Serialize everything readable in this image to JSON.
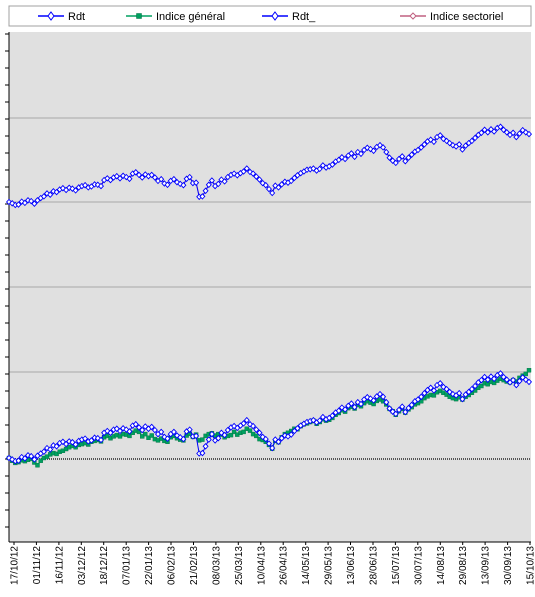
{
  "chart_data": {
    "type": "line",
    "title": "",
    "xlabel": "",
    "ylabel": "",
    "grid": true,
    "legend": "top",
    "x_tick_labels": [
      "17/10/12",
      "01/11/12",
      "16/11/12",
      "03/12/12",
      "18/12/12",
      "07/01/13",
      "22/01/13",
      "06/02/13",
      "21/02/13",
      "08/03/13",
      "25/03/13",
      "10/04/13",
      "26/04/13",
      "14/05/13",
      "29/05/13",
      "13/06/13",
      "28/06/13",
      "15/07/13",
      "30/07/13",
      "14/08/13",
      "29/08/13",
      "13/09/13",
      "30/09/13",
      "15/10/13"
    ],
    "series": [
      {
        "name": "Rdt",
        "color": "#0000ff",
        "marker": "diamond",
        "values": [
          0.0,
          -0.3,
          -0.7,
          -0.6,
          0.2,
          -0.1,
          0.6,
          0.4,
          -0.3,
          0.5,
          1.0,
          1.4,
          2.2,
          1.9,
          2.8,
          2.6,
          3.3,
          3.6,
          3.1,
          3.7,
          3.5,
          3.0,
          3.8,
          4.1,
          4.3,
          3.7,
          3.9,
          4.5,
          4.4,
          4.0,
          5.6,
          6.0,
          5.6,
          6.3,
          6.5,
          6.0,
          6.6,
          6.3,
          5.9,
          7.2,
          7.5,
          6.8,
          6.2,
          7.0,
          6.5,
          6.9,
          6.2,
          5.3,
          5.8,
          4.7,
          4.3,
          5.3,
          5.8,
          5.0,
          4.6,
          4.2,
          5.9,
          6.3,
          4.8,
          4.9,
          1.0,
          1.1,
          2.6,
          4.1,
          5.3,
          3.9,
          4.4,
          5.6,
          5.1,
          6.2,
          6.8,
          7.1,
          6.7,
          7.2,
          7.7,
          8.4,
          7.5,
          7.1,
          6.3,
          5.6,
          4.7,
          4.2,
          3.2,
          2.2,
          4.1,
          3.6,
          4.4,
          5.0,
          4.8,
          5.2,
          6.0,
          6.6,
          7.2,
          7.6,
          8.0,
          8.2,
          8.4,
          7.9,
          8.3,
          9.1,
          8.6,
          8.9,
          9.4,
          10.1,
          10.5,
          11.2,
          10.8,
          11.6,
          12.1,
          11.3,
          12.4,
          12.0,
          13.0,
          13.5,
          13.2,
          12.8,
          13.7,
          14.2,
          13.6,
          12.4,
          11.0,
          10.3,
          9.8,
          10.7,
          11.4,
          10.2,
          11.1,
          11.8,
          12.6,
          13.0,
          13.6,
          14.4,
          15.1,
          15.6,
          15.0,
          16.2,
          16.6,
          15.8,
          15.3,
          14.7,
          14.2,
          13.9,
          14.4,
          13.1,
          14.1,
          14.7,
          15.3,
          16.0,
          16.8,
          17.3,
          18.0,
          17.4,
          18.1,
          17.6,
          18.4,
          18.8,
          18.0,
          17.4,
          16.8,
          17.3,
          16.2,
          17.1,
          17.9,
          17.4,
          16.9
        ]
      },
      {
        "name": "Indice général",
        "color": "#00a060",
        "marker": "square",
        "values": [
          0.0,
          -0.6,
          -1.1,
          -0.9,
          -0.5,
          -0.7,
          -0.4,
          -0.2,
          -1.0,
          -1.6,
          -0.6,
          0.0,
          0.3,
          0.8,
          1.1,
          0.9,
          1.4,
          1.6,
          2.0,
          2.4,
          2.7,
          2.4,
          2.9,
          3.1,
          3.3,
          3.0,
          3.6,
          3.8,
          4.0,
          3.7,
          4.6,
          4.9,
          4.4,
          4.8,
          5.1,
          4.8,
          5.3,
          5.2,
          4.9,
          5.6,
          6.1,
          5.8,
          4.8,
          5.3,
          4.5,
          5.0,
          4.2,
          3.9,
          4.3,
          3.8,
          3.6,
          4.6,
          4.9,
          4.4,
          4.1,
          3.9,
          5.0,
          5.4,
          4.7,
          5.2,
          3.9,
          4.1,
          4.9,
          5.3,
          5.5,
          5.0,
          5.3,
          5.2,
          4.6,
          4.9,
          5.1,
          5.8,
          5.2,
          5.6,
          5.8,
          6.5,
          6.1,
          5.3,
          4.9,
          4.2,
          4.0,
          3.6,
          2.9,
          2.1,
          3.8,
          3.5,
          4.6,
          5.3,
          5.6,
          6.0,
          6.5,
          6.4,
          7.1,
          7.5,
          7.7,
          8.0,
          8.3,
          7.6,
          8.0,
          8.6,
          8.3,
          8.5,
          8.9,
          9.6,
          10.0,
          10.6,
          10.3,
          11.1,
          11.4,
          11.0,
          11.8,
          11.5,
          12.2,
          12.6,
          12.3,
          12.0,
          12.7,
          13.0,
          12.6,
          11.9,
          10.9,
          10.4,
          9.6,
          10.4,
          10.9,
          10.1,
          10.8,
          11.3,
          11.9,
          12.2,
          12.6,
          13.3,
          13.7,
          14.0,
          13.9,
          14.6,
          14.9,
          14.5,
          14.1,
          13.6,
          13.3,
          13.1,
          13.5,
          13.0,
          13.6,
          14.0,
          14.5,
          15.0,
          15.6,
          16.0,
          16.6,
          16.4,
          16.9,
          16.7,
          17.2,
          17.6,
          17.3,
          17.0,
          16.8,
          17.3,
          17.0,
          17.8,
          18.3,
          18.7,
          19.5
        ]
      },
      {
        "name": "Rdt_",
        "color": "#0000ff",
        "marker": "diamond",
        "values": [
          0.0,
          -0.3,
          -0.7,
          -0.6,
          0.1,
          -0.2,
          0.4,
          0.2,
          -0.4,
          0.4,
          0.9,
          1.3,
          2.0,
          1.7,
          2.5,
          2.3,
          2.9,
          3.2,
          2.8,
          3.3,
          3.1,
          2.7,
          3.4,
          3.7,
          3.9,
          3.4,
          3.6,
          4.1,
          4.0,
          3.7,
          5.1,
          5.5,
          5.1,
          5.7,
          6.0,
          5.5,
          6.1,
          5.8,
          5.4,
          6.6,
          6.9,
          6.3,
          5.7,
          6.4,
          6.0,
          6.3,
          5.7,
          4.9,
          5.3,
          4.3,
          4.0,
          4.9,
          5.3,
          4.6,
          4.2,
          3.9,
          5.4,
          5.8,
          4.4,
          4.5,
          1.2,
          1.3,
          2.6,
          4.0,
          5.0,
          3.7,
          4.2,
          5.2,
          4.8,
          5.8,
          6.3,
          6.6,
          6.2,
          6.7,
          7.1,
          7.8,
          7.0,
          6.6,
          5.9,
          5.2,
          4.4,
          3.9,
          3.0,
          2.1,
          3.8,
          3.4,
          4.1,
          4.7,
          4.5,
          4.9,
          5.6,
          6.2,
          6.7,
          7.1,
          7.5,
          7.6,
          7.8,
          7.3,
          7.7,
          8.5,
          8.0,
          8.3,
          8.7,
          9.4,
          9.8,
          10.4,
          10.0,
          10.8,
          11.3,
          10.5,
          11.6,
          11.2,
          12.1,
          12.6,
          12.3,
          11.9,
          12.8,
          13.2,
          12.7,
          11.6,
          10.3,
          9.6,
          9.1,
          10.0,
          10.6,
          9.5,
          10.3,
          11.0,
          11.7,
          12.1,
          12.7,
          13.4,
          14.1,
          14.5,
          14.0,
          15.1,
          15.5,
          14.7,
          14.2,
          13.7,
          13.2,
          12.9,
          13.4,
          12.2,
          13.1,
          13.7,
          14.2,
          14.9,
          15.6,
          16.1,
          16.8,
          16.2,
          16.9,
          16.4,
          17.2,
          17.5,
          16.8,
          16.2,
          15.6,
          16.1,
          15.1,
          15.9,
          16.7,
          16.2,
          15.8
        ]
      },
      {
        "name": "Indice sectoriel",
        "color": "#c06080",
        "marker": "line",
        "values": [
          0.0,
          -0.3,
          -0.6,
          -0.5,
          0.2,
          -0.1,
          0.4,
          0.3,
          -0.3,
          0.4,
          0.9,
          1.3,
          2.0,
          1.8,
          2.5,
          2.4,
          3.0,
          3.3,
          2.9,
          3.4,
          3.2,
          2.8,
          3.5,
          3.8,
          4.0,
          3.5,
          3.7,
          4.2,
          4.1,
          3.8,
          5.2,
          5.6,
          5.2,
          5.8,
          6.1,
          5.6,
          6.2,
          5.9,
          5.5,
          6.7,
          7.0,
          6.4,
          5.8,
          6.5,
          6.1,
          6.4,
          5.8,
          5.0,
          5.4,
          4.4,
          4.1,
          5.0,
          5.4,
          4.7,
          4.3,
          4.0,
          5.5,
          5.9,
          4.5,
          4.6,
          1.3,
          1.4,
          2.7,
          4.1,
          5.1,
          3.8,
          4.3,
          5.3,
          4.9,
          5.9,
          6.4,
          6.7,
          6.3,
          6.8,
          7.2,
          7.9,
          7.1,
          6.7,
          6.0,
          5.3,
          4.5,
          4.0,
          3.1,
          2.2,
          3.9,
          3.5,
          4.2,
          4.8,
          4.6,
          5.0,
          5.7,
          6.3,
          6.8,
          7.2,
          7.6,
          7.7,
          7.9,
          7.4,
          7.8,
          8.6,
          8.1,
          8.4,
          8.8,
          9.5,
          9.9,
          10.5,
          10.1,
          10.9,
          11.4,
          10.6,
          11.7,
          11.3,
          12.2,
          12.7,
          12.4,
          12.0,
          12.9,
          13.3,
          12.8,
          11.7,
          10.4,
          9.7,
          9.2,
          10.1,
          10.7,
          9.6,
          10.4,
          11.1,
          11.8,
          12.2,
          12.8,
          13.5,
          14.2,
          14.6,
          14.1,
          15.2,
          15.6,
          14.8,
          14.3,
          13.8,
          13.3,
          13.0,
          13.5,
          12.3,
          13.2,
          13.8,
          14.3,
          15.0,
          15.7,
          16.2,
          16.9,
          16.3,
          17.0,
          16.5,
          17.3,
          17.6,
          16.9,
          16.3,
          15.7,
          16.2,
          15.2,
          16.0,
          16.8,
          16.3,
          15.9
        ]
      }
    ]
  }
}
